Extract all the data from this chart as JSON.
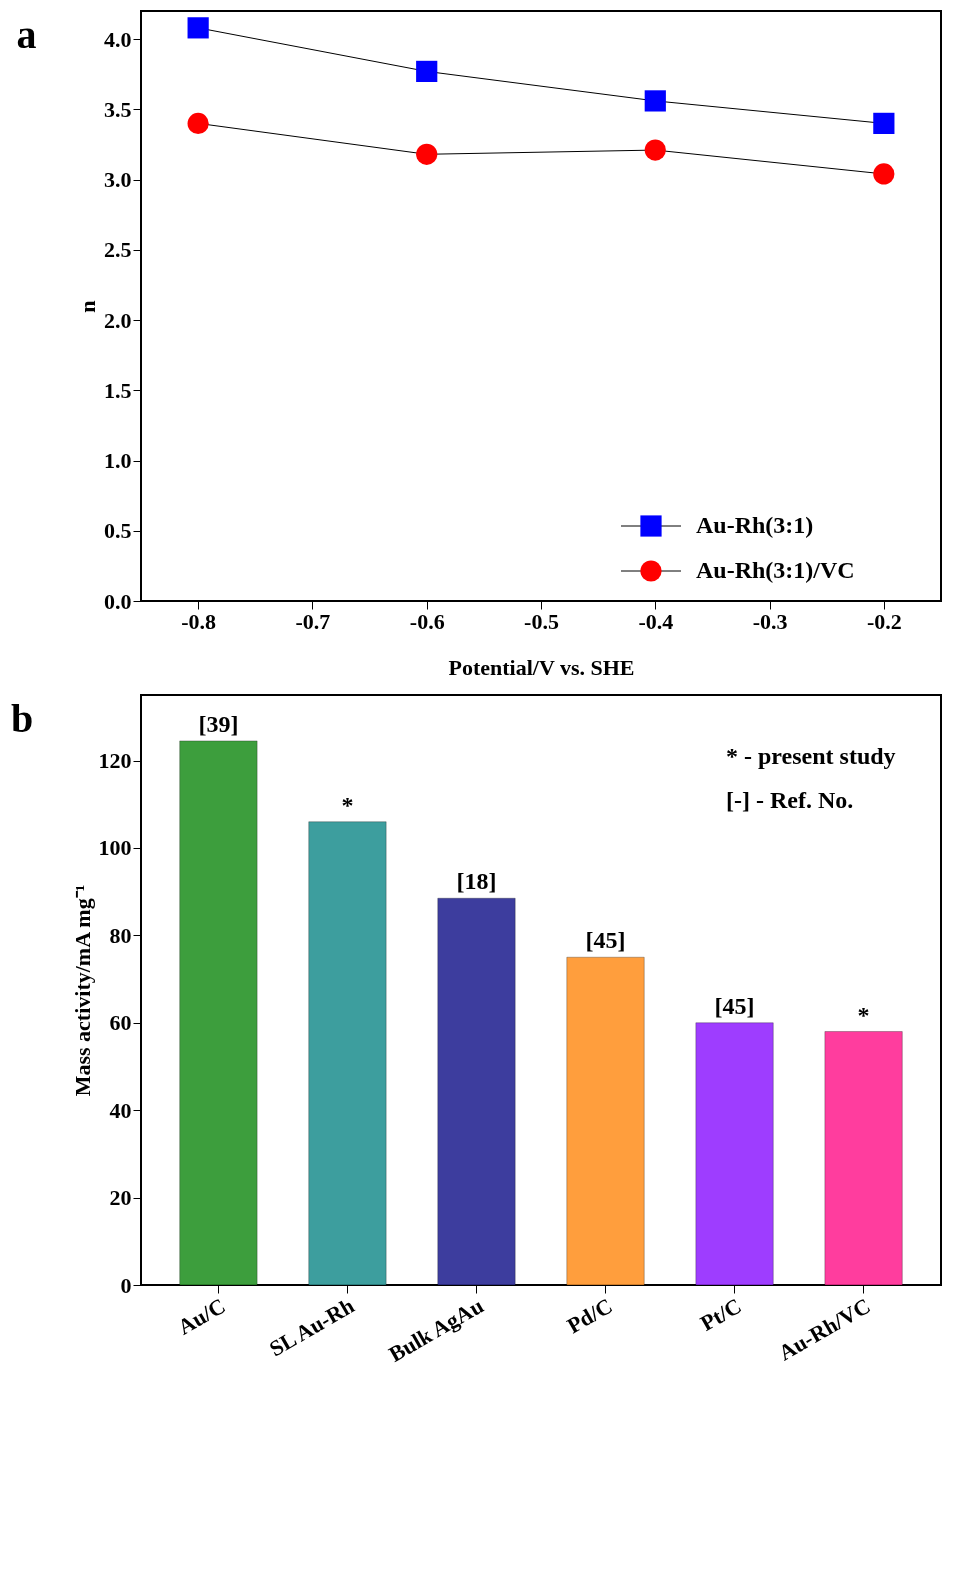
{
  "chart_data": [
    {
      "type": "line",
      "title": "a",
      "xlabel": "Potential/V vs. SHE",
      "ylabel": "n",
      "x": [
        -0.8,
        -0.6,
        -0.4,
        -0.2
      ],
      "series": [
        {
          "name": "Au-Rh(3:1)",
          "color": "#0000ff",
          "marker": "square",
          "values": [
            4.08,
            3.77,
            3.56,
            3.4
          ]
        },
        {
          "name": "Au-Rh(3:1)/VC",
          "color": "#ff0000",
          "marker": "circle",
          "values": [
            3.4,
            3.18,
            3.21,
            3.04
          ]
        }
      ],
      "xlim": [
        -0.85,
        -0.15
      ],
      "xticks": [
        -0.8,
        -0.7,
        -0.6,
        -0.5,
        -0.4,
        -0.3,
        -0.2
      ],
      "ylim": [
        0,
        4.2
      ],
      "yticks": [
        {
          "value": 0,
          "label": "0.0"
        },
        0.5,
        {
          "value": 1,
          "label": "1.0"
        },
        1.5,
        {
          "value": 2,
          "label": "2.0"
        },
        2.5,
        {
          "value": 3,
          "label": "3.0"
        },
        3.5,
        {
          "value": 4,
          "label": "4.0"
        }
      ],
      "legend": "bottom right",
      "grid": false
    },
    {
      "type": "bar",
      "title": "b",
      "ylabel": "Mass activity/mA mg⁻¹",
      "categories": [
        "Au/C",
        "SL Au-Rh",
        "Bulk AgAu",
        "Pd/C",
        "Pt/C",
        "Au-Rh/VC"
      ],
      "values": [
        124.5,
        106,
        88.5,
        75,
        60,
        58
      ],
      "colors": [
        "#339933",
        "#339999",
        "#333399",
        "#ff9933",
        "#9933ff",
        "#ff3399"
      ],
      "ylim": [
        0,
        135
      ],
      "yticks": [
        0,
        20,
        40,
        60,
        80,
        100,
        120
      ],
      "annotations": [
        {
          "text": "[39]",
          "x": "Au/C",
          "y": 124.5
        },
        {
          "text": "*",
          "x": "SL Au-Rh",
          "y": 106
        },
        {
          "text": "[18]",
          "x": "Bulk AgAu",
          "y": 88.5
        },
        {
          "text": "[45]",
          "x": "Pd/C",
          "y": 75
        },
        {
          "text": "[45]",
          "x": "Pt/C",
          "y": 60
        },
        {
          "text": "*",
          "x": "Au-Rh/VC",
          "y": 58
        },
        "* - present study",
        "[-] - Ref. No."
      ],
      "grid": false
    }
  ]
}
